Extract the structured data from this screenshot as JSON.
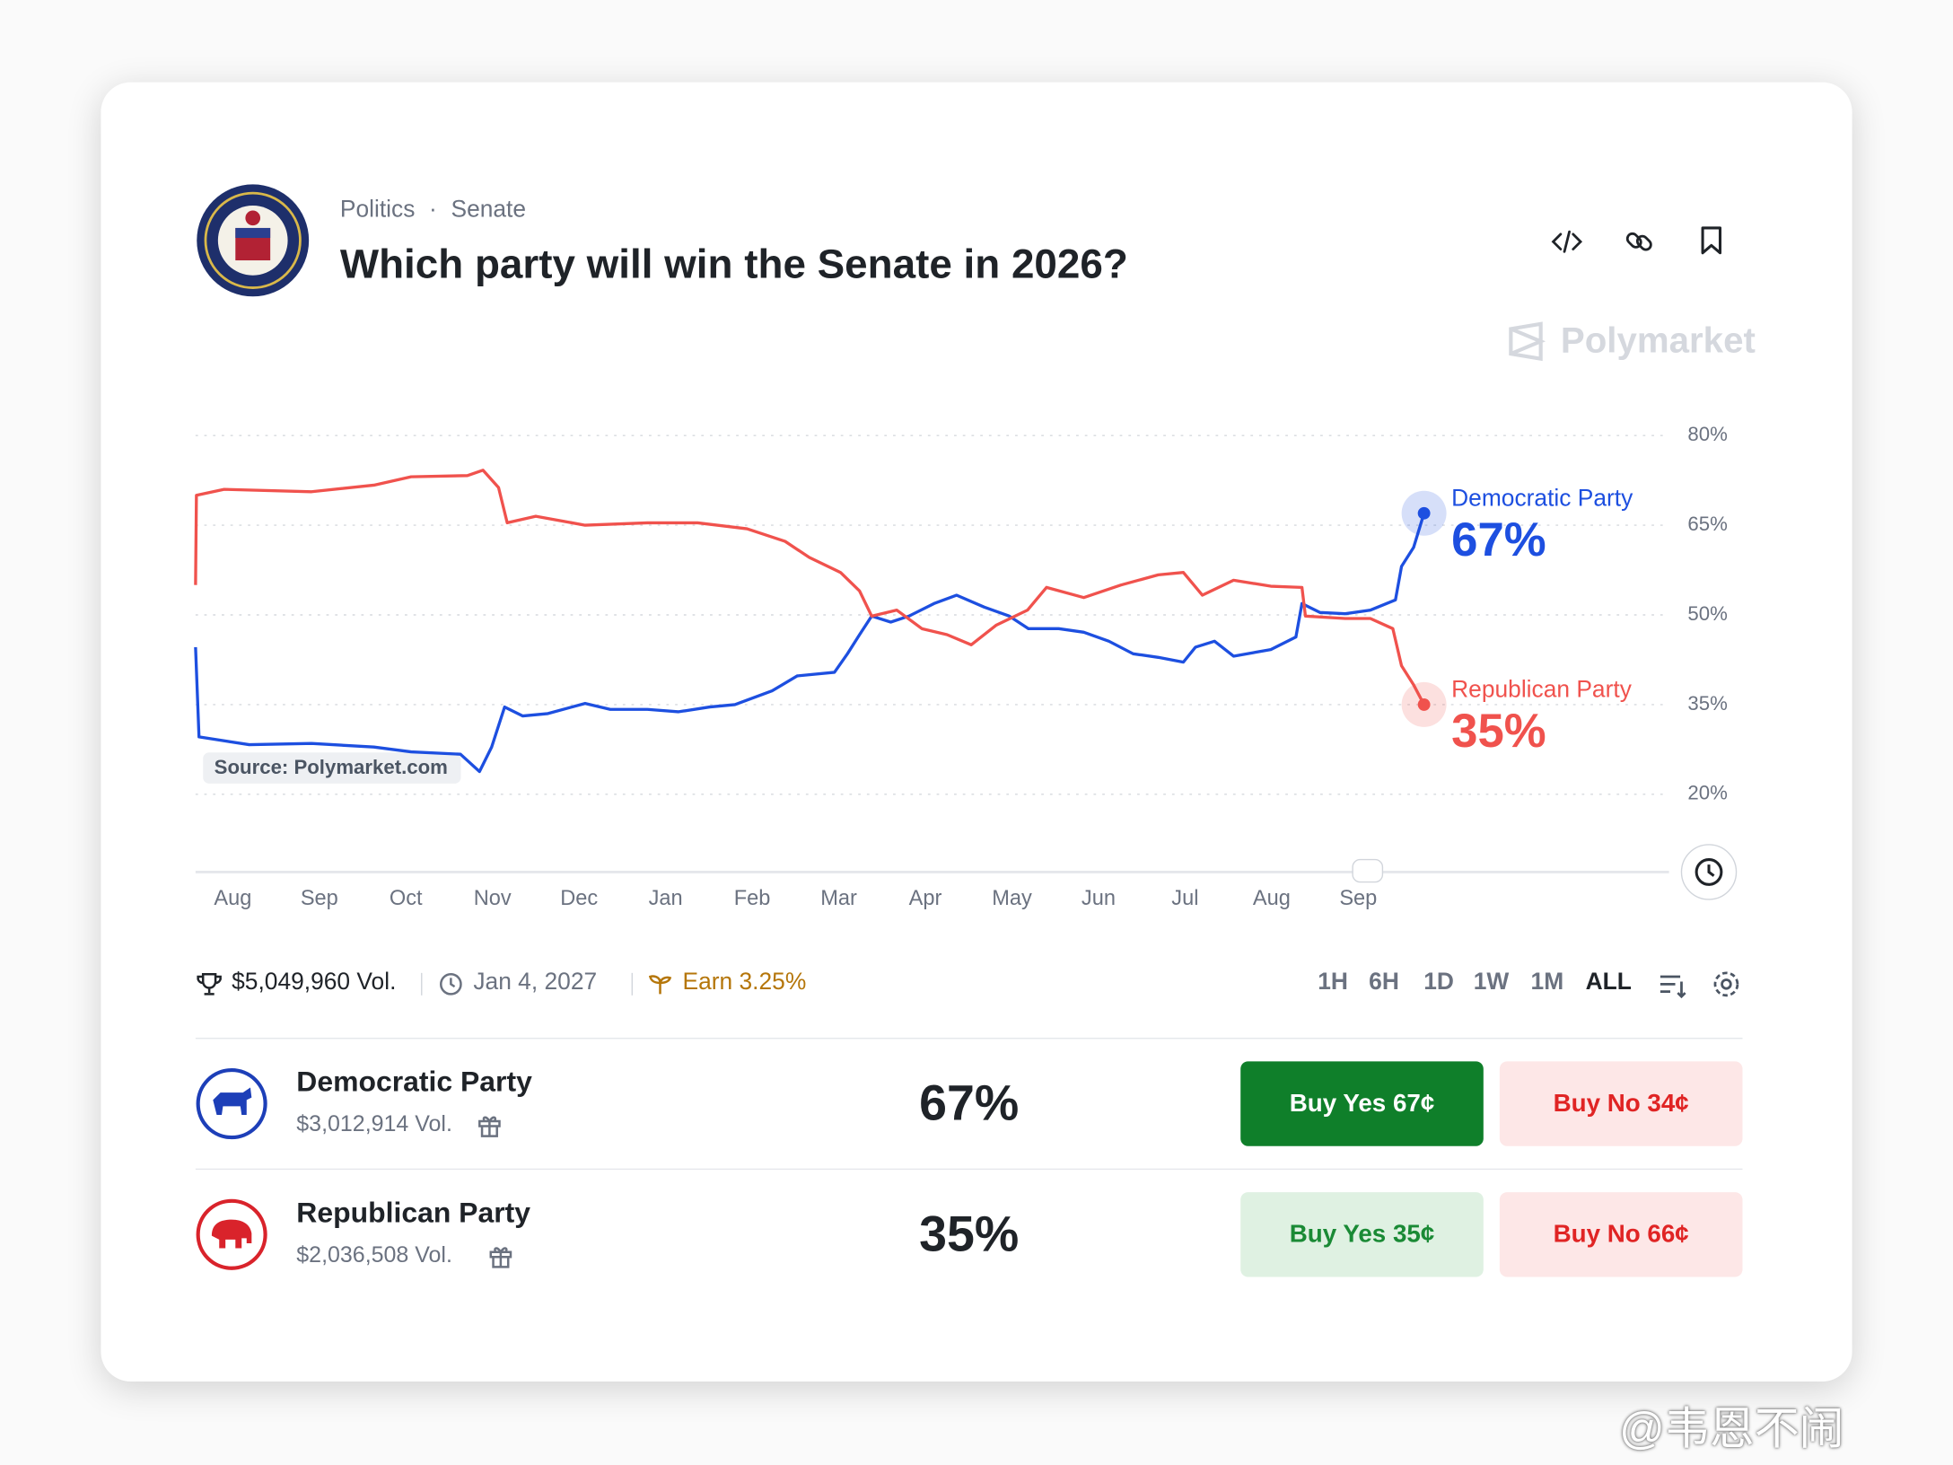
{
  "header": {
    "category": [
      "Politics",
      "Senate"
    ],
    "title": "Which party will win the Senate in 2026?",
    "brand": "Polymarket"
  },
  "chart_data": {
    "type": "line",
    "source": "Source: Polymarket.com",
    "xlim": [
      0,
      17.02
    ],
    "xticks": [
      {
        "value": 0.43,
        "label": "Aug"
      },
      {
        "value": 1.43,
        "label": "Sep"
      },
      {
        "value": 2.43,
        "label": "Oct"
      },
      {
        "value": 3.43,
        "label": "Nov"
      },
      {
        "value": 4.43,
        "label": "Dec"
      },
      {
        "value": 5.43,
        "label": "Jan"
      },
      {
        "value": 6.43,
        "label": "Feb"
      },
      {
        "value": 7.43,
        "label": "Mar"
      },
      {
        "value": 8.43,
        "label": "Apr"
      },
      {
        "value": 9.43,
        "label": "May"
      },
      {
        "value": 10.43,
        "label": "Jun"
      },
      {
        "value": 11.43,
        "label": "Jul"
      },
      {
        "value": 12.43,
        "label": "Aug"
      },
      {
        "value": 13.43,
        "label": "Sep"
      }
    ],
    "ylim": [
      7,
      82
    ],
    "yticks": [
      {
        "value": 80,
        "label": "80%"
      },
      {
        "value": 65,
        "label": "65%"
      },
      {
        "value": 50,
        "label": "50%"
      },
      {
        "value": 35,
        "label": "35%"
      },
      {
        "value": 20,
        "label": "20%"
      }
    ],
    "grid": true,
    "series": [
      {
        "name": "Democratic Party",
        "color": "#1d4fe0",
        "x": [
          0,
          0.04,
          0.62,
          1.34,
          2.06,
          2.49,
          3.06,
          3.28,
          3.42,
          3.57,
          3.78,
          4.07,
          4.5,
          4.79,
          5.22,
          5.58,
          5.94,
          6.23,
          6.66,
          6.95,
          7.38,
          7.53,
          7.67,
          7.81,
          8.03,
          8.24,
          8.53,
          8.79,
          9.11,
          9.4,
          9.62,
          9.97,
          10.26,
          10.55,
          10.83,
          11.12,
          11.41,
          11.55,
          11.77,
          11.99,
          12.42,
          12.71,
          12.78,
          12.99,
          13.28,
          13.57,
          13.86,
          13.93,
          14.07,
          14.19
        ],
        "values": [
          44.6,
          29.6,
          28.3,
          28.5,
          27.9,
          27.1,
          26.7,
          23.8,
          27.9,
          34.6,
          33.1,
          33.5,
          35.2,
          34.2,
          34.2,
          33.8,
          34.6,
          35,
          37.3,
          39.8,
          40.4,
          43.5,
          46.7,
          49.8,
          48.8,
          49.8,
          51.9,
          53.3,
          51.3,
          49.8,
          47.7,
          47.7,
          47.1,
          45.6,
          43.5,
          42.9,
          42.1,
          44.6,
          45.6,
          43.1,
          44.2,
          46.3,
          51.9,
          50.4,
          50.2,
          50.8,
          52.5,
          58.1,
          61.3,
          67
        ]
      },
      {
        "name": "Republican Party",
        "color": "#f0524d",
        "x": [
          0,
          0.01,
          0.33,
          1.34,
          2.06,
          2.49,
          3.14,
          3.32,
          3.5,
          3.6,
          3.93,
          4.5,
          5.22,
          5.8,
          6.37,
          6.81,
          7.09,
          7.45,
          7.67,
          7.81,
          8.1,
          8.39,
          8.68,
          8.96,
          9.25,
          9.61,
          9.83,
          10.26,
          10.69,
          11.12,
          11.41,
          11.63,
          11.99,
          12.42,
          12.78,
          12.82,
          13.28,
          13.57,
          13.83,
          13.93,
          14.07,
          14.19
        ],
        "values": [
          55,
          70,
          71,
          70.6,
          71.7,
          73.1,
          73.3,
          74.2,
          71.3,
          65.4,
          66.5,
          65,
          65.4,
          65.4,
          64.4,
          62.3,
          59.6,
          57.1,
          54,
          49.8,
          50.8,
          47.7,
          46.7,
          45,
          48.3,
          50.8,
          54.6,
          52.9,
          55,
          56.7,
          57.1,
          53.3,
          55.8,
          54.8,
          54.6,
          49.8,
          49.4,
          49.4,
          47.7,
          41.5,
          38.3,
          35
        ]
      }
    ]
  },
  "stats": {
    "volume": "$5,049,960 Vol.",
    "end_date": "Jan 4, 2027",
    "earn": "Earn 3.25%",
    "timeframes": [
      "1H",
      "6H",
      "1D",
      "1W",
      "1M",
      "ALL"
    ]
  },
  "outcomes": [
    {
      "name": "Democratic Party",
      "volume": "$3,012,914 Vol.",
      "chance": "67%",
      "buy_yes": "Buy Yes 67¢",
      "buy_no": "Buy No 34¢"
    },
    {
      "name": "Republican Party",
      "volume": "$2,036,508 Vol.",
      "chance": "35%",
      "buy_yes": "Buy Yes 35¢",
      "buy_no": "Buy No 66¢"
    }
  ],
  "watermark": "@韦恩不闹"
}
